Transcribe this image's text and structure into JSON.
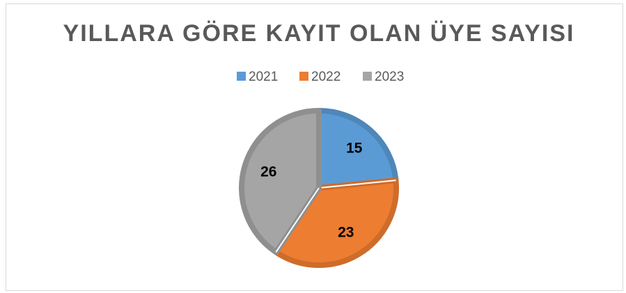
{
  "chart_data": {
    "type": "pie",
    "title": "YILLARA GÖRE KAYIT OLAN ÜYE SAYISI",
    "categories": [
      "2021",
      "2022",
      "2023"
    ],
    "values": [
      15,
      23,
      26
    ],
    "colors": [
      "#5b9bd5",
      "#ed7d31",
      "#a5a5a5"
    ],
    "legend": "top"
  }
}
